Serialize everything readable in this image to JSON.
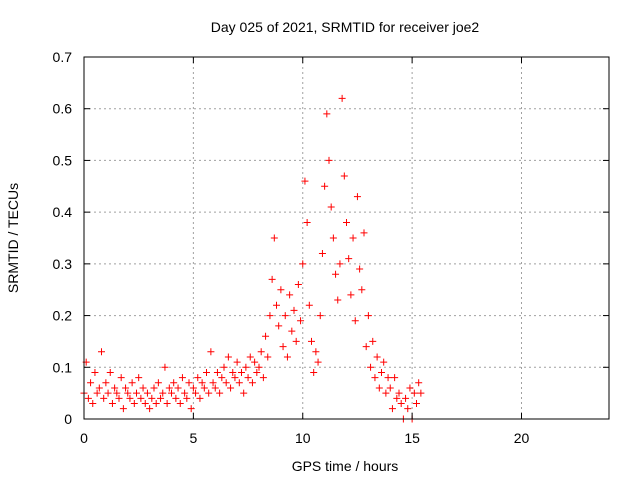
{
  "chart_data": {
    "type": "scatter",
    "title": "Day 025 of 2021, SRMTID for receiver joe2",
    "xlabel": "GPS time / hours",
    "ylabel": "SRMTID / TECUs",
    "xlim": [
      0,
      24
    ],
    "ylim": [
      0,
      0.7
    ],
    "xticks": [
      0,
      5,
      10,
      15,
      20
    ],
    "xtick_labels": [
      "0",
      "5",
      "10",
      "15",
      "20"
    ],
    "yticks": [
      0,
      0.1,
      0.2,
      0.3,
      0.4,
      0.5,
      0.6,
      0.7
    ],
    "ytick_labels": [
      "0",
      "0.1",
      "0.2",
      "0.3",
      "0.4",
      "0.5",
      "0.6",
      "0.7"
    ],
    "grid": true,
    "marker": "+",
    "series": [
      {
        "name": "SRMTID",
        "color": "#ff0000",
        "points": [
          [
            0.0,
            0.05
          ],
          [
            0.1,
            0.11
          ],
          [
            0.2,
            0.04
          ],
          [
            0.3,
            0.07
          ],
          [
            0.4,
            0.03
          ],
          [
            0.5,
            0.09
          ],
          [
            0.6,
            0.05
          ],
          [
            0.7,
            0.06
          ],
          [
            0.8,
            0.13
          ],
          [
            0.9,
            0.04
          ],
          [
            1.0,
            0.07
          ],
          [
            1.1,
            0.05
          ],
          [
            1.2,
            0.09
          ],
          [
            1.3,
            0.03
          ],
          [
            1.4,
            0.06
          ],
          [
            1.5,
            0.05
          ],
          [
            1.6,
            0.04
          ],
          [
            1.7,
            0.08
          ],
          [
            1.8,
            0.02
          ],
          [
            1.9,
            0.06
          ],
          [
            2.0,
            0.05
          ],
          [
            2.1,
            0.04
          ],
          [
            2.2,
            0.07
          ],
          [
            2.3,
            0.03
          ],
          [
            2.4,
            0.05
          ],
          [
            2.5,
            0.08
          ],
          [
            2.6,
            0.04
          ],
          [
            2.7,
            0.06
          ],
          [
            2.8,
            0.03
          ],
          [
            2.9,
            0.05
          ],
          [
            3.0,
            0.02
          ],
          [
            3.1,
            0.04
          ],
          [
            3.2,
            0.06
          ],
          [
            3.3,
            0.03
          ],
          [
            3.4,
            0.07
          ],
          [
            3.5,
            0.04
          ],
          [
            3.6,
            0.05
          ],
          [
            3.7,
            0.1
          ],
          [
            3.8,
            0.03
          ],
          [
            3.9,
            0.06
          ],
          [
            4.0,
            0.05
          ],
          [
            4.1,
            0.07
          ],
          [
            4.2,
            0.04
          ],
          [
            4.3,
            0.06
          ],
          [
            4.4,
            0.03
          ],
          [
            4.5,
            0.08
          ],
          [
            4.6,
            0.05
          ],
          [
            4.7,
            0.04
          ],
          [
            4.8,
            0.07
          ],
          [
            4.9,
            0.02
          ],
          [
            5.0,
            0.06
          ],
          [
            5.1,
            0.05
          ],
          [
            5.2,
            0.08
          ],
          [
            5.3,
            0.04
          ],
          [
            5.4,
            0.07
          ],
          [
            5.5,
            0.06
          ],
          [
            5.6,
            0.09
          ],
          [
            5.7,
            0.05
          ],
          [
            5.8,
            0.13
          ],
          [
            5.9,
            0.07
          ],
          [
            6.0,
            0.06
          ],
          [
            6.1,
            0.09
          ],
          [
            6.2,
            0.05
          ],
          [
            6.3,
            0.08
          ],
          [
            6.4,
            0.1
          ],
          [
            6.5,
            0.07
          ],
          [
            6.6,
            0.12
          ],
          [
            6.7,
            0.06
          ],
          [
            6.8,
            0.09
          ],
          [
            6.9,
            0.08
          ],
          [
            7.0,
            0.11
          ],
          [
            7.1,
            0.07
          ],
          [
            7.2,
            0.09
          ],
          [
            7.3,
            0.05
          ],
          [
            7.4,
            0.1
          ],
          [
            7.5,
            0.08
          ],
          [
            7.6,
            0.12
          ],
          [
            7.7,
            0.07
          ],
          [
            7.8,
            0.11
          ],
          [
            7.9,
            0.09
          ],
          [
            8.0,
            0.1
          ],
          [
            8.1,
            0.13
          ],
          [
            8.2,
            0.08
          ],
          [
            8.3,
            0.16
          ],
          [
            8.4,
            0.12
          ],
          [
            8.5,
            0.2
          ],
          [
            8.6,
            0.27
          ],
          [
            8.7,
            0.35
          ],
          [
            8.8,
            0.22
          ],
          [
            8.9,
            0.18
          ],
          [
            9.0,
            0.25
          ],
          [
            9.1,
            0.14
          ],
          [
            9.2,
            0.2
          ],
          [
            9.3,
            0.12
          ],
          [
            9.4,
            0.24
          ],
          [
            9.5,
            0.17
          ],
          [
            9.6,
            0.21
          ],
          [
            9.7,
            0.15
          ],
          [
            9.8,
            0.26
          ],
          [
            9.9,
            0.19
          ],
          [
            10.0,
            0.3
          ],
          [
            10.1,
            0.46
          ],
          [
            10.2,
            0.38
          ],
          [
            10.3,
            0.22
          ],
          [
            10.4,
            0.15
          ],
          [
            10.5,
            0.09
          ],
          [
            10.6,
            0.13
          ],
          [
            10.7,
            0.11
          ],
          [
            10.8,
            0.2
          ],
          [
            10.9,
            0.32
          ],
          [
            11.0,
            0.45
          ],
          [
            11.1,
            0.59
          ],
          [
            11.2,
            0.5
          ],
          [
            11.3,
            0.41
          ],
          [
            11.4,
            0.35
          ],
          [
            11.5,
            0.28
          ],
          [
            11.6,
            0.23
          ],
          [
            11.7,
            0.3
          ],
          [
            11.8,
            0.62
          ],
          [
            11.9,
            0.47
          ],
          [
            12.0,
            0.38
          ],
          [
            12.1,
            0.31
          ],
          [
            12.2,
            0.24
          ],
          [
            12.3,
            0.35
          ],
          [
            12.4,
            0.19
          ],
          [
            12.5,
            0.43
          ],
          [
            12.6,
            0.29
          ],
          [
            12.7,
            0.25
          ],
          [
            12.8,
            0.36
          ],
          [
            12.9,
            0.14
          ],
          [
            13.0,
            0.2
          ],
          [
            13.1,
            0.1
          ],
          [
            13.2,
            0.15
          ],
          [
            13.3,
            0.08
          ],
          [
            13.4,
            0.12
          ],
          [
            13.5,
            0.06
          ],
          [
            13.6,
            0.09
          ],
          [
            13.7,
            0.11
          ],
          [
            13.8,
            0.05
          ],
          [
            13.9,
            0.08
          ],
          [
            14.0,
            0.06
          ],
          [
            14.1,
            0.02
          ],
          [
            14.2,
            0.08
          ],
          [
            14.3,
            0.04
          ],
          [
            14.4,
            0.05
          ],
          [
            14.5,
            0.03
          ],
          [
            14.6,
            0.0
          ],
          [
            14.7,
            0.04
          ],
          [
            14.8,
            0.02
          ],
          [
            14.9,
            0.06
          ],
          [
            15.0,
            0.0
          ],
          [
            15.1,
            0.05
          ],
          [
            15.2,
            0.03
          ],
          [
            15.3,
            0.07
          ],
          [
            15.4,
            0.05
          ]
        ]
      }
    ]
  }
}
